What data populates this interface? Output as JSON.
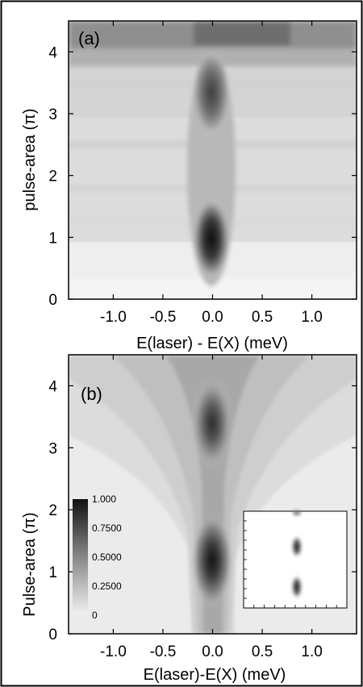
{
  "chart_data": [
    {
      "type": "heatmap",
      "panel_label": "(a)",
      "xlabel": "E(laser) - E(X) (meV)",
      "ylabel": "pulse-area (π)",
      "xlim": [
        -1.45,
        1.45
      ],
      "ylim": [
        0,
        4.5
      ],
      "x_ticks": [
        "-1.0",
        "-0.5",
        "0.0",
        "0.5",
        "1.0"
      ],
      "x_tick_values": [
        -1.0,
        -0.5,
        0.0,
        0.5,
        1.0
      ],
      "y_ticks": [
        "0",
        "1",
        "2",
        "3",
        "4"
      ],
      "y_tick_values": [
        0,
        1,
        2,
        3,
        4
      ],
      "features": [
        {
          "center_x": 0.0,
          "center_y": 1.0,
          "peak": 1.0
        },
        {
          "center_x": 0.0,
          "center_y": 3.2,
          "peak": 0.7
        }
      ],
      "grid": false
    },
    {
      "type": "heatmap",
      "panel_label": "(b)",
      "xlabel": "E(laser)-E(X) (meV)",
      "ylabel": "Pulse-area (π)",
      "xlim": [
        -1.45,
        1.45
      ],
      "ylim": [
        0,
        4.5
      ],
      "x_ticks": [
        "-1.0",
        "-0.5",
        "0.0",
        "0.5",
        "1.0"
      ],
      "x_tick_values": [
        -1.0,
        -0.5,
        0.0,
        0.5,
        1.0
      ],
      "y_ticks": [
        "0",
        "1",
        "2",
        "3",
        "4"
      ],
      "y_tick_values": [
        0,
        1,
        2,
        3,
        4
      ],
      "features": [
        {
          "center_x": 0.0,
          "center_y": 1.15,
          "peak": 1.0
        },
        {
          "center_x": 0.0,
          "center_y": 3.4,
          "peak": 0.95
        }
      ],
      "colorbar": {
        "ticks": [
          "1.000",
          "0.7500",
          "0.5000",
          "0.2500",
          "0"
        ],
        "range": [
          0,
          1
        ]
      },
      "inset": true,
      "grid": false
    }
  ]
}
